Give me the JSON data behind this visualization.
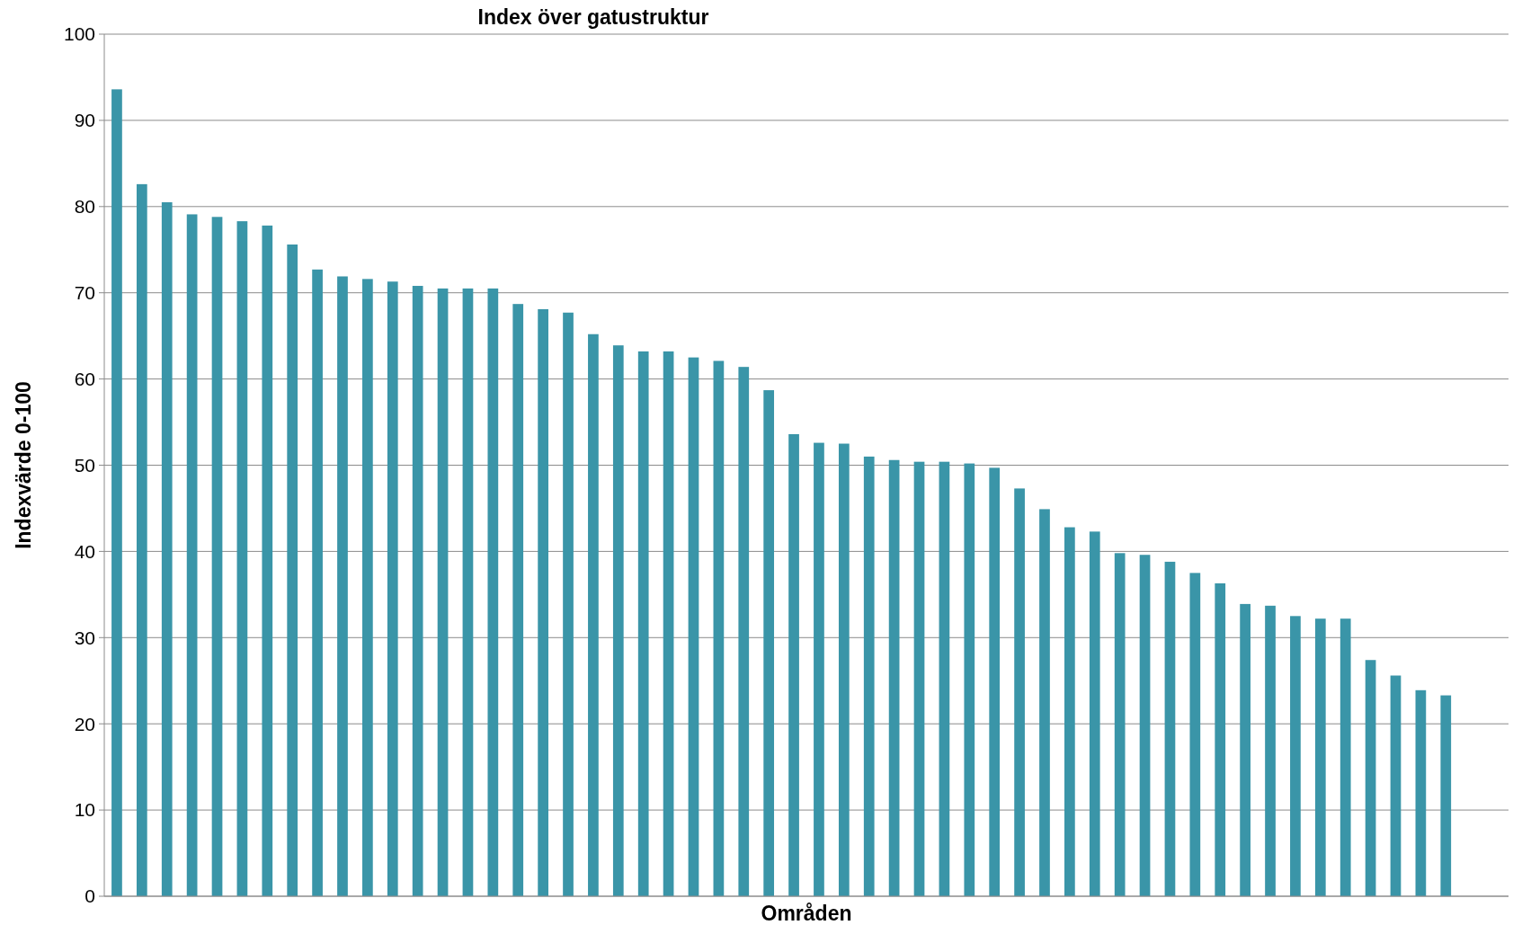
{
  "chart_data": {
    "type": "bar",
    "title": "Index över gatustruktur",
    "xlabel": "Områden",
    "ylabel": "Indexvärde 0-100",
    "categories": [
      null,
      null,
      null,
      null,
      null,
      null,
      null,
      null,
      null,
      null,
      null,
      null,
      null,
      null,
      null,
      null,
      null,
      null,
      null,
      null,
      null,
      null,
      null,
      null,
      null,
      null,
      null,
      null,
      null,
      null,
      null,
      null,
      null,
      null,
      null,
      null,
      null,
      null,
      null,
      null,
      null,
      null,
      null,
      null,
      null,
      null,
      null,
      null,
      null,
      null,
      null,
      null,
      null,
      null,
      null,
      null
    ],
    "values": [
      93.6,
      82.6,
      80.5,
      79.1,
      78.8,
      78.3,
      77.8,
      75.6,
      72.7,
      71.9,
      71.6,
      71.3,
      70.8,
      70.5,
      70.5,
      70.5,
      68.7,
      68.1,
      67.7,
      65.2,
      63.9,
      63.2,
      63.2,
      62.5,
      62.1,
      61.4,
      58.7,
      53.6,
      52.6,
      52.5,
      51.0,
      50.6,
      50.4,
      50.4,
      50.2,
      49.7,
      47.3,
      44.9,
      42.8,
      42.3,
      39.8,
      39.6,
      38.8,
      37.5,
      36.3,
      33.9,
      33.7,
      32.5,
      32.2,
      32.2,
      27.4,
      25.6,
      23.9,
      23.3,
      null,
      null
    ],
    "color": "#3a95a8",
    "ylim": [
      0,
      100
    ],
    "yticks": [
      0,
      10,
      20,
      30,
      40,
      50,
      60,
      70,
      80,
      90,
      100
    ],
    "grid": "y"
  }
}
